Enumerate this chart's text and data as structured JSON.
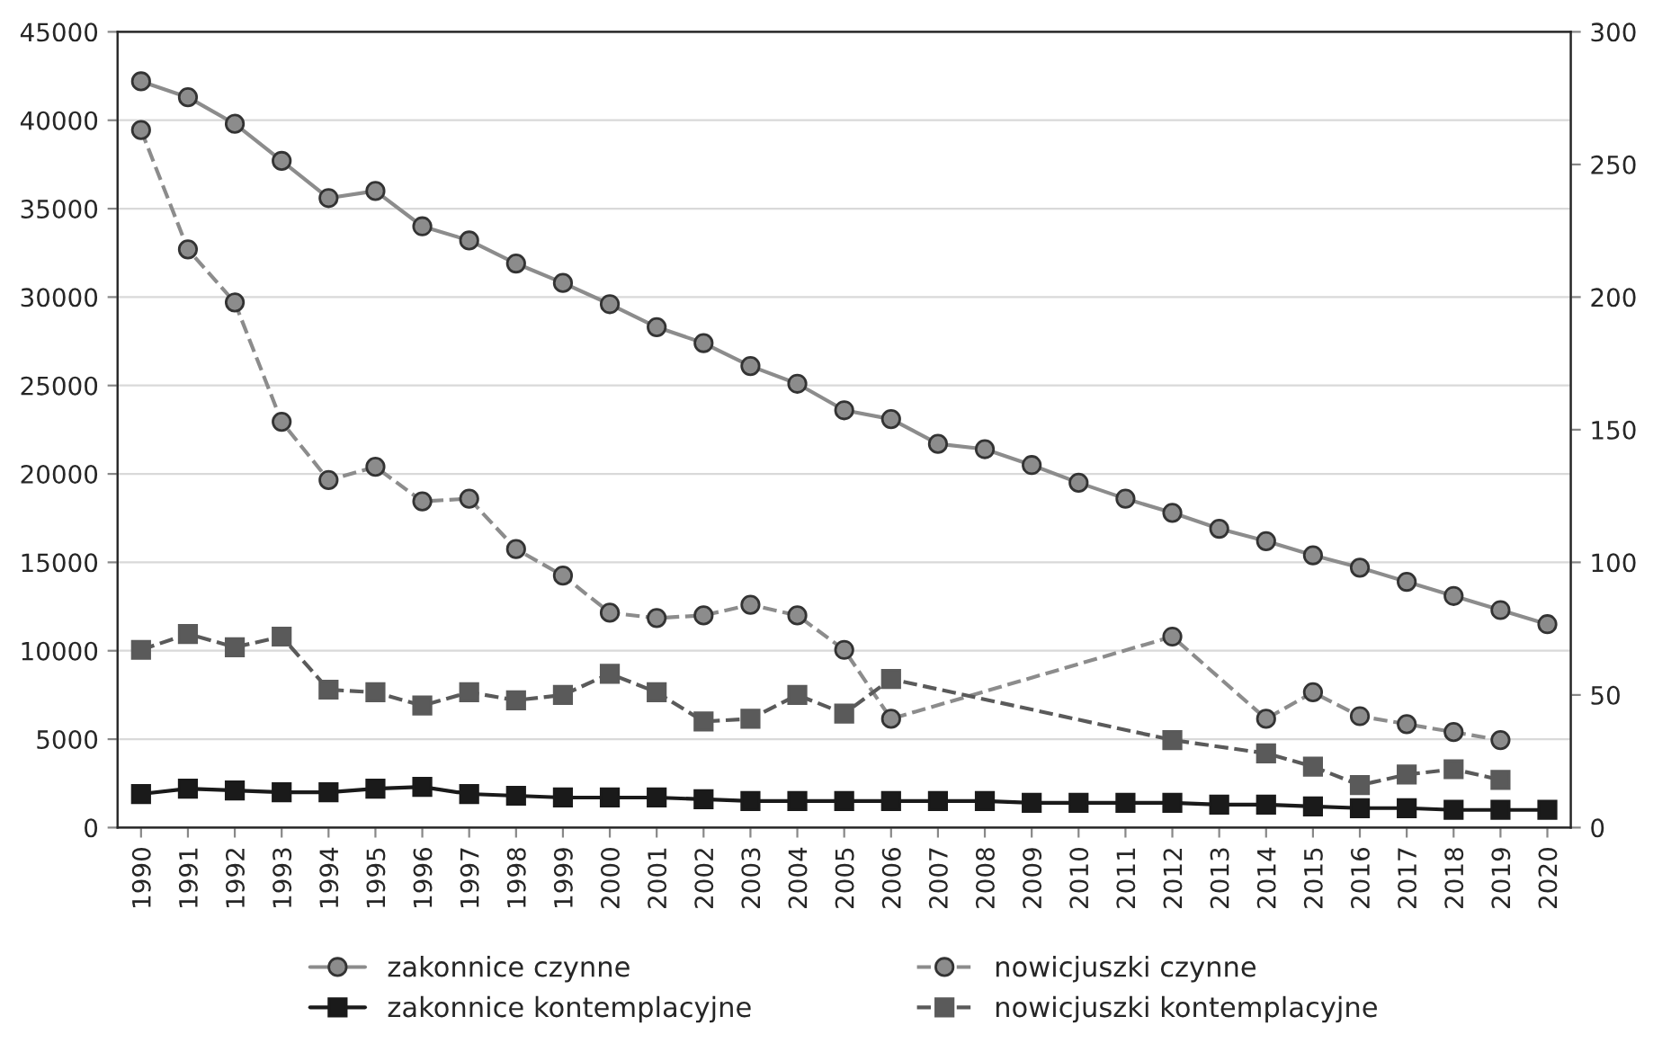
{
  "chart_data": {
    "type": "line",
    "xlim": [
      1989.5,
      2020.5
    ],
    "xticks": [
      1990,
      1991,
      1992,
      1993,
      1994,
      1995,
      1996,
      1997,
      1998,
      1999,
      2000,
      2001,
      2002,
      2003,
      2004,
      2005,
      2006,
      2007,
      2008,
      2009,
      2010,
      2011,
      2012,
      2013,
      2014,
      2015,
      2016,
      2017,
      2018,
      2019,
      2020
    ],
    "ylim": [
      0,
      45000
    ],
    "yticks": [
      0,
      5000,
      10000,
      15000,
      20000,
      25000,
      30000,
      35000,
      40000,
      45000
    ],
    "y2lim": [
      0,
      300
    ],
    "y2ticks": [
      0,
      50,
      100,
      150,
      200,
      250,
      300
    ],
    "grid": "y",
    "legend": "bottom",
    "series": [
      {
        "name": "zakonnice czynne",
        "color": "#8c8c8c",
        "marker": "circle",
        "line_style": "solid",
        "x": [
          1990,
          1991,
          1992,
          1993,
          1994,
          1995,
          1996,
          1997,
          1998,
          1999,
          2000,
          2001,
          2002,
          2003,
          2004,
          2005,
          2006,
          2007,
          2008,
          2009,
          2010,
          2011,
          2012,
          2013,
          2014,
          2015,
          2016,
          2017,
          2018,
          2019,
          2020
        ],
        "values": [
          42200,
          41300,
          39800,
          37700,
          35600,
          36000,
          34000,
          33200,
          31900,
          30800,
          29600,
          28300,
          27400,
          26100,
          25100,
          23600,
          23100,
          21700,
          21400,
          20500,
          19500,
          18600,
          17800,
          16900,
          16200,
          15400,
          14700,
          13900,
          13100,
          12300,
          11500
        ]
      },
      {
        "name": "zakonnice kontemplacyjne",
        "color": "#1a1a1a",
        "marker": "square",
        "line_style": "solid",
        "x": [
          1990,
          1991,
          1992,
          1993,
          1994,
          1995,
          1996,
          1997,
          1998,
          1999,
          2000,
          2001,
          2002,
          2003,
          2004,
          2005,
          2006,
          2007,
          2008,
          2009,
          2010,
          2011,
          2012,
          2013,
          2014,
          2015,
          2016,
          2017,
          2018,
          2019,
          2020
        ],
        "values": [
          1900,
          2200,
          2100,
          2000,
          2000,
          2200,
          2300,
          1900,
          1800,
          1700,
          1700,
          1700,
          1600,
          1500,
          1500,
          1500,
          1500,
          1500,
          1500,
          1400,
          1400,
          1400,
          1400,
          1300,
          1300,
          1200,
          1100,
          1100,
          1000,
          1000,
          1000
        ]
      },
      {
        "name": "nowicjuszki czynne",
        "color": "#8c8c8c",
        "marker": "circle",
        "line_style": "dashed",
        "axis": "y2",
        "x": [
          1990,
          1991,
          1992,
          1993,
          1994,
          1995,
          1996,
          1997,
          1998,
          1999,
          2000,
          2001,
          2002,
          2003,
          2004,
          2005,
          2006,
          2012,
          2014,
          2015,
          2016,
          2017,
          2018,
          2019
        ],
        "values": [
          263,
          218,
          198,
          153,
          131,
          136,
          123,
          124,
          105,
          95,
          81,
          79,
          80,
          84,
          80,
          67,
          41,
          72,
          41,
          51,
          42,
          39,
          36,
          33
        ]
      },
      {
        "name": "nowicjuszki kontemplacyjne",
        "color": "#5a5a5a",
        "marker": "square",
        "line_style": "dashed",
        "axis": "y2",
        "x": [
          1990,
          1991,
          1992,
          1993,
          1994,
          1995,
          1996,
          1997,
          1998,
          1999,
          2000,
          2001,
          2002,
          2003,
          2004,
          2005,
          2006,
          2012,
          2014,
          2015,
          2016,
          2017,
          2018,
          2019
        ],
        "values": [
          67,
          73,
          68,
          72,
          52,
          51,
          46,
          51,
          48,
          50,
          58,
          51,
          40,
          41,
          50,
          43,
          56,
          33,
          28,
          23,
          16,
          20,
          22,
          18
        ]
      }
    ]
  }
}
